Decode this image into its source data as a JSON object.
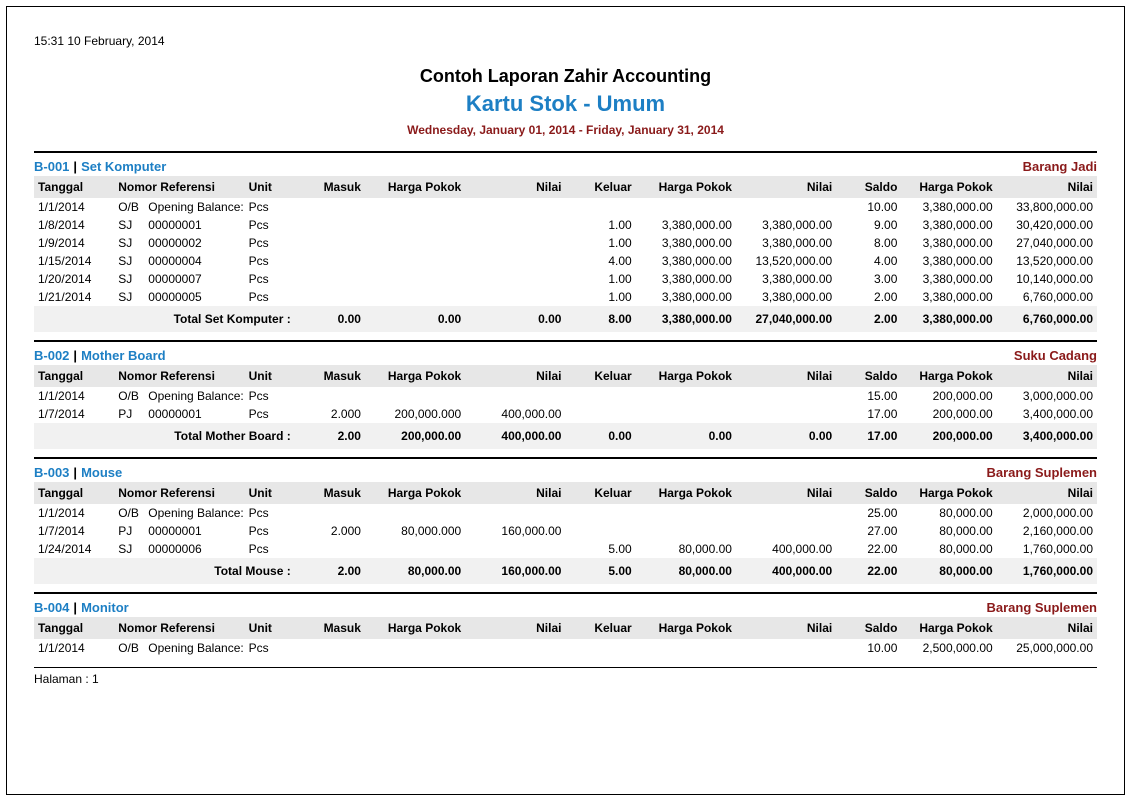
{
  "colors": {
    "blue": "#1d7fc4",
    "maroon": "#8a1a1a",
    "header_bg": "#e7e7e7",
    "total_bg": "#f1f1f1",
    "border": "#000000"
  },
  "timestamp": "15:31  10 February, 2014",
  "title1": "Contoh Laporan Zahir Accounting",
  "title2": "Kartu Stok - Umum",
  "title3": "Wednesday, January 01, 2014 - Friday, January 31, 2014",
  "columns": {
    "tanggal": "Tanggal",
    "nomor_ref": "Nomor Referensi",
    "unit": "Unit",
    "masuk": "Masuk",
    "hp1": "Harga Pokok",
    "n1": "Nilai",
    "keluar": "Keluar",
    "hp2": "Harga Pokok",
    "n2": "Nilai",
    "saldo": "Saldo",
    "hp3": "Harga Pokok",
    "n3": "Nilai"
  },
  "footer": "Halaman : 1",
  "groups": [
    {
      "code": "B-001",
      "name": "Set Komputer",
      "category": "Barang Jadi",
      "rows": [
        {
          "tgl": "1/1/2014",
          "ref1": "O/B",
          "ref2": "Opening Balance:",
          "unit": "Pcs",
          "masuk": "",
          "hp1": "",
          "n1": "",
          "keluar": "",
          "hp2": "",
          "n2": "",
          "saldo": "10.00",
          "hp3": "3,380,000.00",
          "n3": "33,800,000.00"
        },
        {
          "tgl": "1/8/2014",
          "ref1": "SJ",
          "ref2": "00000001",
          "unit": "Pcs",
          "masuk": "",
          "hp1": "",
          "n1": "",
          "keluar": "1.00",
          "hp2": "3,380,000.00",
          "n2": "3,380,000.00",
          "saldo": "9.00",
          "hp3": "3,380,000.00",
          "n3": "30,420,000.00"
        },
        {
          "tgl": "1/9/2014",
          "ref1": "SJ",
          "ref2": "00000002",
          "unit": "Pcs",
          "masuk": "",
          "hp1": "",
          "n1": "",
          "keluar": "1.00",
          "hp2": "3,380,000.00",
          "n2": "3,380,000.00",
          "saldo": "8.00",
          "hp3": "3,380,000.00",
          "n3": "27,040,000.00"
        },
        {
          "tgl": "1/15/2014",
          "ref1": "SJ",
          "ref2": "00000004",
          "unit": "Pcs",
          "masuk": "",
          "hp1": "",
          "n1": "",
          "keluar": "4.00",
          "hp2": "3,380,000.00",
          "n2": "13,520,000.00",
          "saldo": "4.00",
          "hp3": "3,380,000.00",
          "n3": "13,520,000.00"
        },
        {
          "tgl": "1/20/2014",
          "ref1": "SJ",
          "ref2": "00000007",
          "unit": "Pcs",
          "masuk": "",
          "hp1": "",
          "n1": "",
          "keluar": "1.00",
          "hp2": "3,380,000.00",
          "n2": "3,380,000.00",
          "saldo": "3.00",
          "hp3": "3,380,000.00",
          "n3": "10,140,000.00"
        },
        {
          "tgl": "1/21/2014",
          "ref1": "SJ",
          "ref2": "00000005",
          "unit": "Pcs",
          "masuk": "",
          "hp1": "",
          "n1": "",
          "keluar": "1.00",
          "hp2": "3,380,000.00",
          "n2": "3,380,000.00",
          "saldo": "2.00",
          "hp3": "3,380,000.00",
          "n3": "6,760,000.00"
        }
      ],
      "total": {
        "label": "Total Set Komputer  :",
        "masuk": "0.00",
        "hp1": "0.00",
        "n1": "0.00",
        "keluar": "8.00",
        "hp2": "3,380,000.00",
        "n2": "27,040,000.00",
        "saldo": "2.00",
        "hp3": "3,380,000.00",
        "n3": "6,760,000.00"
      }
    },
    {
      "code": "B-002",
      "name": "Mother Board",
      "category": "Suku Cadang",
      "rows": [
        {
          "tgl": "1/1/2014",
          "ref1": "O/B",
          "ref2": "Opening Balance:",
          "unit": "Pcs",
          "masuk": "",
          "hp1": "",
          "n1": "",
          "keluar": "",
          "hp2": "",
          "n2": "",
          "saldo": "15.00",
          "hp3": "200,000.00",
          "n3": "3,000,000.00"
        },
        {
          "tgl": "1/7/2014",
          "ref1": "PJ",
          "ref2": "00000001",
          "unit": "Pcs",
          "masuk": "2.000",
          "hp1": "200,000.000",
          "n1": "400,000.00",
          "keluar": "",
          "hp2": "",
          "n2": "",
          "saldo": "17.00",
          "hp3": "200,000.00",
          "n3": "3,400,000.00"
        }
      ],
      "total": {
        "label": "Total Mother Board  :",
        "masuk": "2.00",
        "hp1": "200,000.00",
        "n1": "400,000.00",
        "keluar": "0.00",
        "hp2": "0.00",
        "n2": "0.00",
        "saldo": "17.00",
        "hp3": "200,000.00",
        "n3": "3,400,000.00"
      }
    },
    {
      "code": "B-003",
      "name": "Mouse",
      "category": "Barang Suplemen",
      "rows": [
        {
          "tgl": "1/1/2014",
          "ref1": "O/B",
          "ref2": "Opening Balance:",
          "unit": "Pcs",
          "masuk": "",
          "hp1": "",
          "n1": "",
          "keluar": "",
          "hp2": "",
          "n2": "",
          "saldo": "25.00",
          "hp3": "80,000.00",
          "n3": "2,000,000.00"
        },
        {
          "tgl": "1/7/2014",
          "ref1": "PJ",
          "ref2": "00000001",
          "unit": "Pcs",
          "masuk": "2.000",
          "hp1": "80,000.000",
          "n1": "160,000.00",
          "keluar": "",
          "hp2": "",
          "n2": "",
          "saldo": "27.00",
          "hp3": "80,000.00",
          "n3": "2,160,000.00"
        },
        {
          "tgl": "1/24/2014",
          "ref1": "SJ",
          "ref2": "00000006",
          "unit": "Pcs",
          "masuk": "",
          "hp1": "",
          "n1": "",
          "keluar": "5.00",
          "hp2": "80,000.00",
          "n2": "400,000.00",
          "saldo": "22.00",
          "hp3": "80,000.00",
          "n3": "1,760,000.00"
        }
      ],
      "total": {
        "label": "Total Mouse  :",
        "masuk": "2.00",
        "hp1": "80,000.00",
        "n1": "160,000.00",
        "keluar": "5.00",
        "hp2": "80,000.00",
        "n2": "400,000.00",
        "saldo": "22.00",
        "hp3": "80,000.00",
        "n3": "1,760,000.00"
      }
    },
    {
      "code": "B-004",
      "name": "Monitor",
      "category": "Barang Suplemen",
      "rows": [
        {
          "tgl": "1/1/2014",
          "ref1": "O/B",
          "ref2": "Opening Balance:",
          "unit": "Pcs",
          "masuk": "",
          "hp1": "",
          "n1": "",
          "keluar": "",
          "hp2": "",
          "n2": "",
          "saldo": "10.00",
          "hp3": "2,500,000.00",
          "n3": "25,000,000.00"
        }
      ],
      "total": null
    }
  ]
}
